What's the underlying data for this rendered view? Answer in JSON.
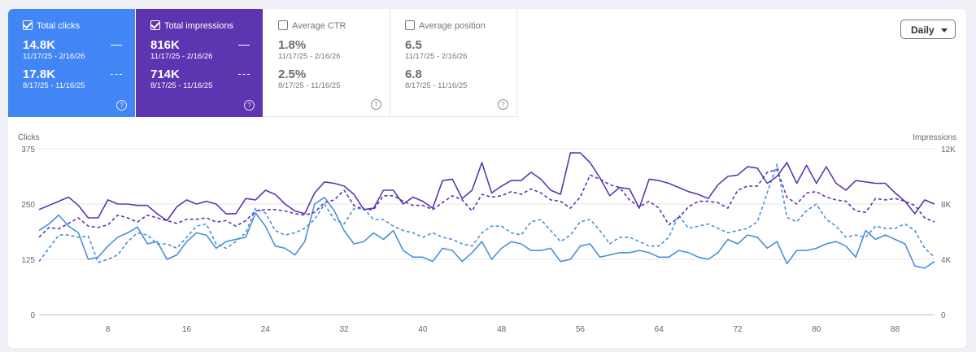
{
  "cards": [
    {
      "title": "Total clicks",
      "checked": true,
      "current_value": "14.8K",
      "current_range": "11/17/25 - 2/16/26",
      "previous_value": "17.8K",
      "previous_range": "8/17/25 - 11/16/25",
      "help": "?"
    },
    {
      "title": "Total impressions",
      "checked": true,
      "current_value": "816K",
      "current_range": "11/17/25 - 2/16/26",
      "previous_value": "714K",
      "previous_range": "8/17/25 - 11/16/25",
      "help": "?"
    },
    {
      "title": "Average CTR",
      "checked": false,
      "current_value": "1.8%",
      "current_range": "11/17/25 - 2/16/26",
      "previous_value": "2.5%",
      "previous_range": "8/17/25 - 11/16/25",
      "help": "?"
    },
    {
      "title": "Average position",
      "checked": false,
      "current_value": "6.5",
      "current_range": "11/17/25 - 2/16/26",
      "previous_value": "6.8",
      "previous_range": "8/17/25 - 11/16/25",
      "help": "?"
    }
  ],
  "granularity": {
    "label": "Daily"
  },
  "colors": {
    "clicks": "#4a90d9",
    "impressions": "#5e35b1",
    "grid": "#e6e6e6",
    "axis_text": "#666666"
  },
  "chart_data": {
    "type": "line",
    "ylabel_left": "Clicks",
    "ylabel_right": "Impressions",
    "yticks_left": [
      "0",
      "125",
      "250",
      "375"
    ],
    "yticks_right": [
      "0",
      "4K",
      "8K",
      "12K"
    ],
    "ylim_left": [
      0,
      375
    ],
    "ylim_right": [
      0,
      12000
    ],
    "xticks": [
      8,
      16,
      24,
      32,
      40,
      48,
      56,
      64,
      72,
      80,
      88
    ],
    "xlim": [
      1,
      92
    ],
    "grid": true,
    "series": [
      {
        "axis": "left",
        "style": "solid",
        "color": "#4a90d9",
        "values": [
          190,
          205,
          225,
          200,
          185,
          125,
          130,
          155,
          175,
          185,
          198,
          160,
          165,
          125,
          135,
          165,
          185,
          180,
          150,
          165,
          170,
          175,
          230,
          200,
          155,
          150,
          135,
          165,
          250,
          265,
          235,
          190,
          160,
          165,
          185,
          170,
          190,
          145,
          130,
          130,
          120,
          150,
          145,
          120,
          140,
          165,
          125,
          150,
          165,
          160,
          145,
          145,
          150,
          120,
          125,
          155,
          160,
          130,
          135,
          140,
          140,
          145,
          140,
          130,
          130,
          145,
          140,
          130,
          125,
          140,
          170,
          160,
          180,
          175,
          150,
          165,
          115,
          145,
          145,
          150,
          160,
          165,
          155,
          130,
          190,
          170,
          180,
          170,
          160,
          110,
          105,
          120
        ]
      },
      {
        "axis": "left",
        "style": "dashed",
        "color": "#4a90d9",
        "values": [
          120,
          150,
          180,
          180,
          175,
          178,
          118,
          125,
          135,
          165,
          185,
          180,
          160,
          160,
          150,
          175,
          200,
          205,
          160,
          150,
          165,
          185,
          240,
          230,
          190,
          180,
          185,
          195,
          215,
          250,
          215,
          205,
          240,
          240,
          215,
          215,
          200,
          190,
          185,
          175,
          185,
          175,
          170,
          160,
          155,
          185,
          200,
          200,
          185,
          180,
          210,
          215,
          190,
          165,
          180,
          210,
          215,
          190,
          160,
          175,
          175,
          165,
          155,
          155,
          175,
          225,
          195,
          200,
          205,
          195,
          185,
          190,
          195,
          210,
          275,
          340,
          220,
          210,
          235,
          250,
          215,
          200,
          175,
          180,
          175,
          200,
          195,
          195,
          205,
          190,
          150,
          130
        ]
      },
      {
        "axis": "right",
        "style": "solid",
        "color": "#5e35b1",
        "values": [
          7600,
          7900,
          8200,
          8500,
          7900,
          7000,
          7000,
          8300,
          8000,
          8000,
          7900,
          7900,
          7300,
          6800,
          7800,
          8300,
          8000,
          8200,
          8000,
          7300,
          7300,
          8400,
          8300,
          9000,
          8700,
          8000,
          7500,
          7300,
          8800,
          9600,
          9500,
          9300,
          8700,
          7600,
          7700,
          9000,
          9000,
          8000,
          8500,
          8200,
          7700,
          9700,
          9800,
          8400,
          9000,
          11000,
          8800,
          9300,
          9700,
          9700,
          10300,
          9800,
          9000,
          8700,
          11700,
          11700,
          11000,
          9900,
          8600,
          9200,
          9100,
          7700,
          9800,
          9700,
          9500,
          9200,
          8900,
          8700,
          8400,
          9400,
          10000,
          10100,
          10700,
          10600,
          9500,
          10000,
          11000,
          9500,
          10800,
          9500,
          10700,
          9500,
          9000,
          9700,
          9600,
          9500,
          9500,
          8800,
          8200,
          7300,
          8300,
          8000
        ]
      },
      {
        "axis": "right",
        "style": "dashed",
        "color": "#5e35b1",
        "values": [
          5600,
          6300,
          6200,
          6600,
          7000,
          6400,
          6300,
          6500,
          7200,
          7000,
          6700,
          7200,
          7000,
          6800,
          6600,
          6900,
          6900,
          7000,
          6700,
          6800,
          6400,
          6800,
          7500,
          7600,
          7600,
          7500,
          7300,
          7200,
          7400,
          8100,
          8300,
          9000,
          7900,
          7600,
          7600,
          8600,
          8600,
          8200,
          7900,
          7900,
          7600,
          8100,
          8600,
          8300,
          7500,
          8700,
          8500,
          8600,
          8900,
          8700,
          9100,
          8800,
          8300,
          8200,
          7700,
          8500,
          10100,
          9800,
          9400,
          9200,
          8300,
          7800,
          8200,
          7700,
          6500,
          7000,
          7800,
          8200,
          8200,
          8100,
          7700,
          9000,
          9300,
          9300,
          10300,
          10500,
          8500,
          8000,
          8800,
          8900,
          8500,
          8300,
          8200,
          7500,
          7400,
          8400,
          8300,
          8400,
          8200,
          7900,
          7000,
          6700
        ]
      }
    ]
  }
}
